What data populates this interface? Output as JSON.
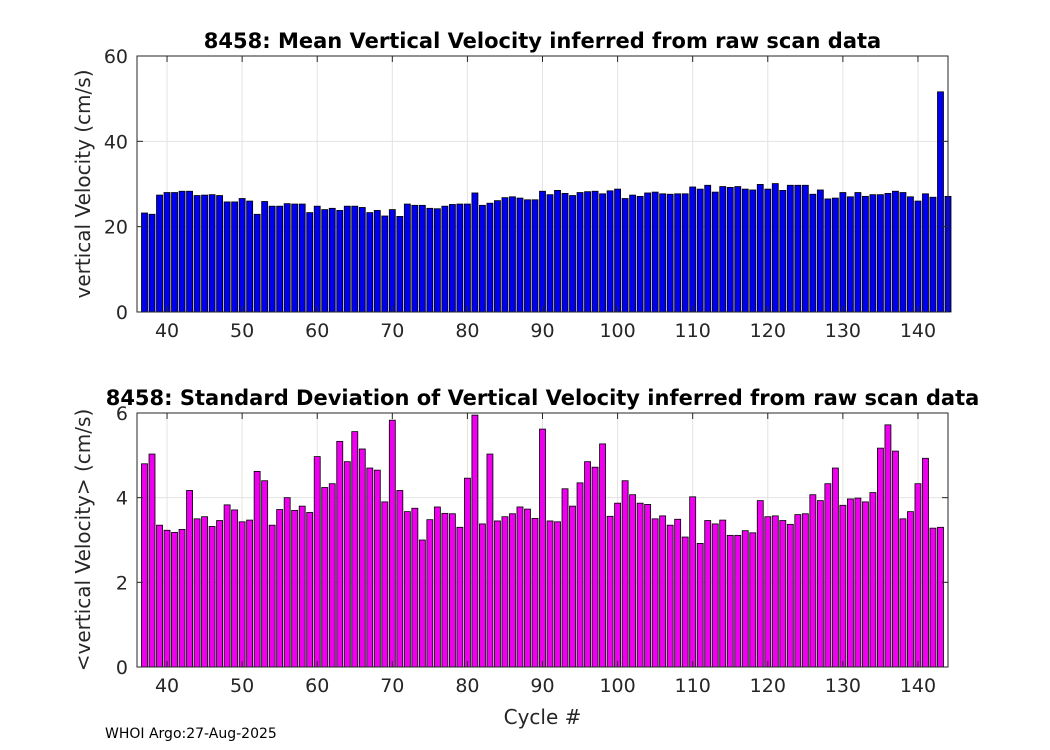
{
  "chart_data": [
    {
      "type": "bar",
      "title": "8458: Mean Vertical Velocity inferred from raw scan data",
      "xlabel": "",
      "ylabel": "vertical Velocity (cm/s)",
      "xlim": [
        36,
        144
      ],
      "ylim": [
        0,
        60
      ],
      "xticks": [
        40,
        50,
        60,
        70,
        80,
        90,
        100,
        110,
        120,
        130,
        140
      ],
      "yticks": [
        0,
        20,
        40,
        60
      ],
      "grid": true,
      "color": "#0000ee",
      "x_start": 37,
      "values": [
        23.2,
        22.9,
        27.4,
        28.0,
        28.0,
        28.3,
        28.3,
        27.3,
        27.4,
        27.5,
        27.3,
        25.8,
        25.8,
        26.6,
        26.0,
        22.9,
        25.9,
        24.8,
        24.8,
        25.4,
        25.3,
        25.3,
        23.3,
        24.8,
        24.0,
        24.3,
        23.8,
        24.8,
        24.8,
        24.5,
        23.3,
        23.8,
        22.5,
        24.0,
        22.4,
        25.3,
        25.0,
        25.0,
        24.3,
        24.2,
        24.8,
        25.2,
        25.3,
        25.3,
        27.9,
        25.0,
        25.5,
        26.1,
        26.8,
        27.0,
        26.7,
        26.3,
        26.3,
        28.3,
        27.5,
        28.5,
        27.8,
        27.3,
        28.0,
        28.2,
        28.3,
        27.7,
        28.4,
        28.8,
        26.6,
        27.4,
        27.1,
        27.9,
        28.1,
        27.7,
        27.6,
        27.7,
        27.7,
        29.3,
        28.8,
        29.7,
        28.1,
        29.4,
        29.2,
        29.4,
        28.8,
        28.6,
        29.9,
        28.8,
        30.1,
        28.5,
        29.7,
        29.7,
        29.7,
        27.6,
        28.6,
        26.5,
        26.7,
        28.0,
        27.0,
        28.0,
        27.1,
        27.5,
        27.5,
        27.8,
        28.3,
        28.0,
        27.0,
        26.0,
        27.7,
        26.9,
        51.6,
        27.1
      ]
    },
    {
      "type": "bar",
      "title": "8458: Standard Deviation of Vertical Velocity inferred from raw scan data",
      "xlabel": "Cycle #",
      "ylabel": "<vertical Velocity> (cm/s)",
      "xlim": [
        36,
        144
      ],
      "ylim": [
        0,
        6
      ],
      "xticks": [
        40,
        50,
        60,
        70,
        80,
        90,
        100,
        110,
        120,
        130,
        140
      ],
      "yticks": [
        0,
        2,
        4,
        6
      ],
      "grid": true,
      "color": "#ee00ee",
      "x_start": 37,
      "values": [
        4.8,
        5.03,
        3.35,
        3.23,
        3.18,
        3.25,
        4.17,
        3.5,
        3.55,
        3.32,
        3.46,
        3.83,
        3.71,
        3.43,
        3.47,
        4.62,
        4.4,
        3.35,
        3.72,
        4.0,
        3.7,
        3.8,
        3.65,
        4.97,
        4.24,
        4.33,
        5.33,
        4.85,
        5.56,
        5.15,
        4.7,
        4.65,
        3.9,
        5.83,
        4.17,
        3.67,
        3.75,
        3.0,
        3.48,
        3.78,
        3.63,
        3.62,
        3.3,
        4.46,
        5.95,
        3.38,
        5.03,
        3.45,
        3.55,
        3.62,
        3.78,
        3.73,
        3.51,
        5.62,
        3.45,
        3.43,
        4.21,
        3.8,
        4.35,
        4.85,
        4.72,
        5.27,
        3.56,
        3.87,
        4.4,
        4.07,
        3.87,
        3.84,
        3.5,
        3.57,
        3.35,
        3.49,
        3.07,
        4.02,
        2.92,
        3.46,
        3.38,
        3.47,
        3.11,
        3.11,
        3.22,
        3.17,
        3.93,
        3.55,
        3.57,
        3.46,
        3.37,
        3.6,
        3.62,
        4.07,
        3.93,
        4.33,
        4.7,
        3.82,
        3.97,
        3.99,
        3.9,
        4.12,
        5.17,
        5.72,
        5.1,
        3.5,
        3.67,
        4.33,
        4.93,
        3.28,
        3.3
      ]
    }
  ],
  "footer": {
    "text": "WHOI Argo:27-Aug-2025"
  }
}
